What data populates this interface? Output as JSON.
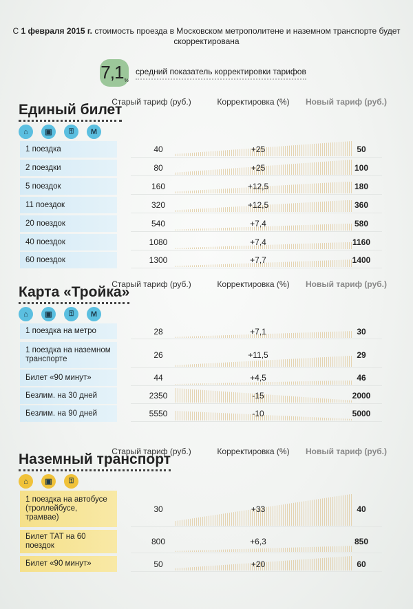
{
  "intro": {
    "p1": "С ",
    "date_bold": "1 февраля 2015 г.",
    "p2": " стоимость проезда в Московском метрополитене и наземном транспорте будет скорректирована"
  },
  "average": {
    "value": "7,1",
    "unit": "%",
    "label": "средний показатель корректировки тарифов"
  },
  "columns": {
    "old": "Старый тариф (руб.)",
    "correction": "Корректировка (%)",
    "new": "Новый тариф (руб.)"
  },
  "sections": [
    {
      "title": "Единый билет",
      "theme": "blue",
      "icons": [
        "tram-icon",
        "bus-icon",
        "trolleybus-icon",
        "metro-icon"
      ],
      "rows": [
        {
          "label": "1 поездка",
          "old": "40",
          "correction": "+25",
          "new": "50"
        },
        {
          "label": "2 поездки",
          "old": "80",
          "correction": "+25",
          "new": "100"
        },
        {
          "label": "5 поездок",
          "old": "160",
          "correction": "+12,5",
          "new": "180"
        },
        {
          "label": "11 поездок",
          "old": "320",
          "correction": "+12,5",
          "new": "360"
        },
        {
          "label": "20 поездок",
          "old": "540",
          "correction": "+7,4",
          "new": "580"
        },
        {
          "label": "40 поездок",
          "old": "1080",
          "correction": "+7,4",
          "new": "1160"
        },
        {
          "label": "60  поездок",
          "old": "1300",
          "correction": "+7,7",
          "new": "1400"
        }
      ]
    },
    {
      "title": "Карта «Тройка»",
      "theme": "blue",
      "icons": [
        "tram-icon",
        "bus-icon",
        "trolleybus-icon",
        "metro-icon"
      ],
      "rows": [
        {
          "label": "1 поездка на метро",
          "old": "28",
          "correction": "+7,1",
          "new": "30"
        },
        {
          "label": "1 поездка на наземном транспорте",
          "old": "26",
          "correction": "+11,5",
          "new": "29"
        },
        {
          "label": "Билет «90 минут»",
          "old": "44",
          "correction": "+4,5",
          "new": "46"
        },
        {
          "label": "Безлим. на 30 дней",
          "old": "2350",
          "correction": "-15",
          "new": "2000"
        },
        {
          "label": "Безлим. на 90 дней",
          "old": "5550",
          "correction": "-10",
          "new": "5000"
        }
      ]
    },
    {
      "title": "Наземный транспорт",
      "theme": "yellow",
      "icons": [
        "tram-icon",
        "bus-icon",
        "trolleybus-icon"
      ],
      "rows": [
        {
          "label": "1 поездка на автобусе (троллейбусе, трамвае)",
          "old": "30",
          "correction": "+33",
          "new": "40"
        },
        {
          "label": "Билет ТАТ на 60 поездок",
          "old": "800",
          "correction": "+6,3",
          "new": "850"
        },
        {
          "label": "Билет «90 минут»",
          "old": "50",
          "correction": "+20",
          "new": "60"
        }
      ]
    }
  ]
}
